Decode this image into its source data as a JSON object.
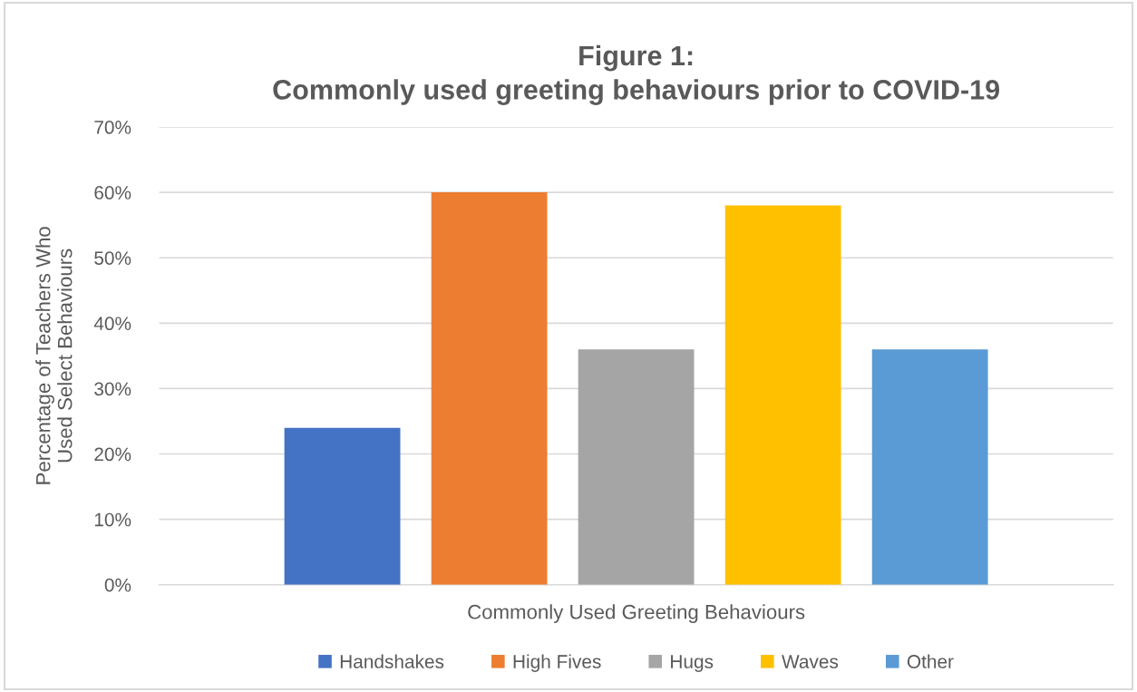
{
  "chart_data": {
    "type": "bar",
    "title": "Figure 1:\nCommonly used greeting behaviours prior to COVID-19",
    "xlabel": "Commonly Used Greeting Behaviours",
    "ylabel": "Percentage of Teachers Who\nUsed Select Behaviours",
    "categories": [
      null
    ],
    "series": [
      {
        "name": "Handshakes",
        "color": "#4472c4",
        "values": [
          24
        ]
      },
      {
        "name": "High Fives",
        "color": "#ed7d31",
        "values": [
          60
        ]
      },
      {
        "name": "Hugs",
        "color": "#a5a5a5",
        "values": [
          36
        ]
      },
      {
        "name": "Waves",
        "color": "#ffc000",
        "values": [
          58
        ]
      },
      {
        "name": "Other",
        "color": "#5b9bd5",
        "values": [
          36
        ]
      }
    ],
    "ylim": [
      0,
      70
    ],
    "yticks": [
      {
        "value": 0,
        "label": "0%"
      },
      {
        "value": 10,
        "label": "10%"
      },
      {
        "value": 20,
        "label": "20%"
      },
      {
        "value": 30,
        "label": "30%"
      },
      {
        "value": 40,
        "label": "40%"
      },
      {
        "value": 50,
        "label": "50%"
      },
      {
        "value": 60,
        "label": "60%"
      },
      {
        "value": 70,
        "label": "70%"
      }
    ],
    "grid": "y",
    "legend": "bottom"
  }
}
